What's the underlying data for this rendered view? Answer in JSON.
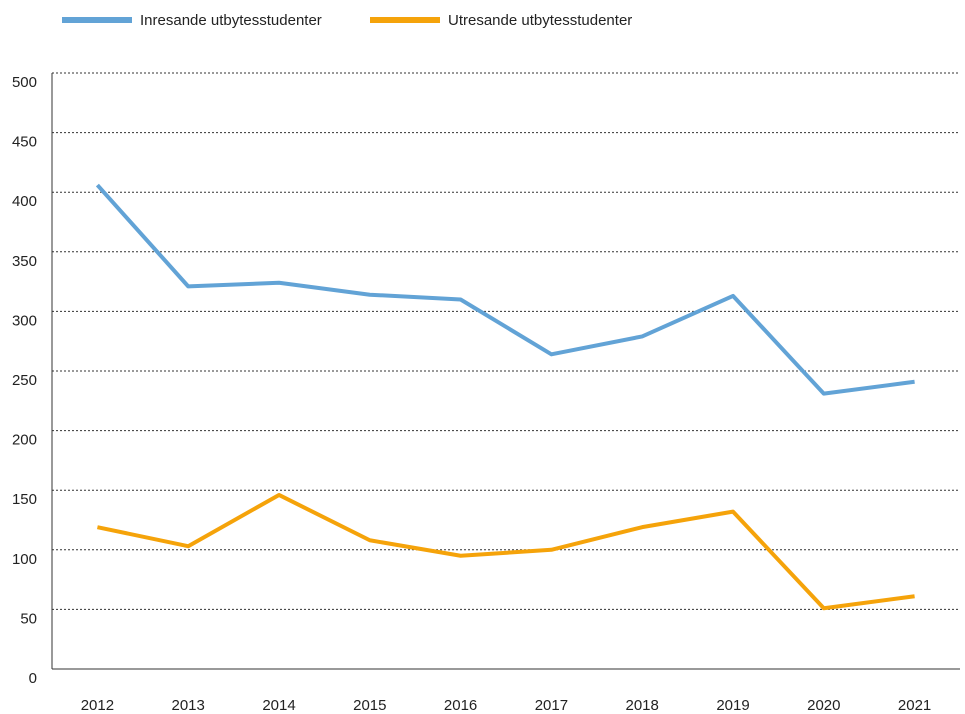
{
  "chart_data": {
    "type": "line",
    "categories": [
      "2012",
      "2013",
      "2014",
      "2015",
      "2016",
      "2017",
      "2018",
      "2019",
      "2020",
      "2021"
    ],
    "series": [
      {
        "name": "Inresande utbytesstudenter",
        "color": "#62a3d6",
        "values": [
          406,
          321,
          324,
          314,
          310,
          264,
          279,
          313,
          231,
          241
        ]
      },
      {
        "name": "Utresande utbytesstudenter",
        "color": "#f5a30a",
        "values": [
          119,
          103,
          146,
          108,
          95,
          100,
          119,
          132,
          51,
          61
        ]
      }
    ],
    "ylim": [
      0,
      500
    ],
    "yticks": [
      0,
      50,
      100,
      150,
      200,
      250,
      300,
      350,
      400,
      450,
      500
    ],
    "grid": true
  }
}
